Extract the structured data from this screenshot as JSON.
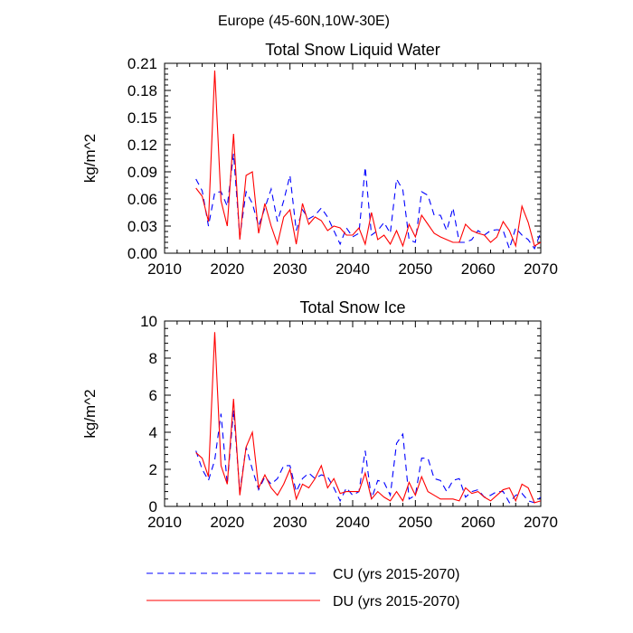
{
  "figure_title": "Europe (45-60N,10W-30E)",
  "legend": {
    "entries": [
      {
        "label": "CU (yrs 2015-2070)",
        "color": "#0000ff",
        "dash": "dashed"
      },
      {
        "label": "DU (yrs 2015-2070)",
        "color": "#ff0000",
        "dash": "solid"
      }
    ]
  },
  "chart_data": [
    {
      "type": "line",
      "title": "Total Snow Liquid Water",
      "xlabel": "",
      "ylabel": "kg/m^2",
      "xlim": [
        2010,
        2070
      ],
      "ylim": [
        0,
        0.21
      ],
      "xticks": [
        2010,
        2020,
        2030,
        2040,
        2050,
        2060,
        2070
      ],
      "yticks": [
        0,
        0.03,
        0.06,
        0.09,
        0.12,
        0.15,
        0.18,
        0.21
      ],
      "ytick_labels": [
        "0.00",
        "0.03",
        "0.06",
        "0.09",
        "0.12",
        "0.15",
        "0.18",
        "0.21"
      ],
      "x": [
        2015,
        2016,
        2017,
        2018,
        2019,
        2020,
        2021,
        2022,
        2023,
        2024,
        2025,
        2026,
        2027,
        2028,
        2029,
        2030,
        2031,
        2032,
        2033,
        2034,
        2035,
        2036,
        2037,
        2038,
        2039,
        2040,
        2041,
        2042,
        2043,
        2044,
        2045,
        2046,
        2047,
        2048,
        2049,
        2050,
        2051,
        2052,
        2053,
        2054,
        2055,
        2056,
        2057,
        2058,
        2059,
        2060,
        2061,
        2062,
        2063,
        2064,
        2065,
        2066,
        2067,
        2068,
        2069,
        2070
      ],
      "series": [
        {
          "name": "CU (yrs 2015-2070)",
          "color": "#0000ff",
          "dash": "dashed",
          "values": [
            0.082,
            0.069,
            0.03,
            0.067,
            0.068,
            0.052,
            0.11,
            0.018,
            0.068,
            0.055,
            0.03,
            0.05,
            0.071,
            0.035,
            0.058,
            0.086,
            0.025,
            0.048,
            0.038,
            0.042,
            0.05,
            0.04,
            0.025,
            0.01,
            0.028,
            0.018,
            0.022,
            0.095,
            0.02,
            0.025,
            0.034,
            0.022,
            0.082,
            0.07,
            0.015,
            0.012,
            0.068,
            0.064,
            0.042,
            0.042,
            0.025,
            0.05,
            0.012,
            0.012,
            0.015,
            0.025,
            0.02,
            0.025,
            0.026,
            0.025,
            0.005,
            0.028,
            0.02,
            0.015,
            0.005,
            0.023
          ]
        },
        {
          "name": "DU (yrs 2015-2070)",
          "color": "#ff0000",
          "dash": "solid",
          "values": [
            0.072,
            0.063,
            0.035,
            0.202,
            0.058,
            0.03,
            0.132,
            0.015,
            0.086,
            0.09,
            0.022,
            0.055,
            0.03,
            0.01,
            0.04,
            0.048,
            0.01,
            0.055,
            0.032,
            0.04,
            0.036,
            0.025,
            0.03,
            0.028,
            0.02,
            0.02,
            0.028,
            0.01,
            0.045,
            0.015,
            0.02,
            0.01,
            0.025,
            0.008,
            0.032,
            0.018,
            0.042,
            0.032,
            0.022,
            0.018,
            0.015,
            0.012,
            0.012,
            0.032,
            0.025,
            0.022,
            0.02,
            0.012,
            0.018,
            0.035,
            0.025,
            0.008,
            0.052,
            0.034,
            0.008,
            0.012
          ]
        }
      ]
    },
    {
      "type": "line",
      "title": "Total Snow Ice",
      "xlabel": "",
      "ylabel": "kg/m^2",
      "xlim": [
        2010,
        2070
      ],
      "ylim": [
        0,
        10
      ],
      "xticks": [
        2010,
        2020,
        2030,
        2040,
        2050,
        2060,
        2070
      ],
      "yticks": [
        0,
        2,
        4,
        6,
        8,
        10
      ],
      "ytick_labels": [
        "0",
        "2",
        "4",
        "6",
        "8",
        "10"
      ],
      "x": [
        2015,
        2016,
        2017,
        2018,
        2019,
        2020,
        2021,
        2022,
        2023,
        2024,
        2025,
        2026,
        2027,
        2028,
        2029,
        2030,
        2031,
        2032,
        2033,
        2034,
        2035,
        2036,
        2037,
        2038,
        2039,
        2040,
        2041,
        2042,
        2043,
        2044,
        2045,
        2046,
        2047,
        2048,
        2049,
        2050,
        2051,
        2052,
        2053,
        2054,
        2055,
        2056,
        2057,
        2058,
        2059,
        2060,
        2061,
        2062,
        2063,
        2064,
        2065,
        2066,
        2067,
        2068,
        2069,
        2070
      ],
      "series": [
        {
          "name": "CU (yrs 2015-2070)",
          "color": "#0000ff",
          "dash": "dashed",
          "values": [
            3.0,
            2.0,
            1.4,
            2.5,
            5.0,
            1.2,
            5.2,
            0.8,
            3.2,
            2.0,
            0.9,
            1.6,
            1.2,
            1.5,
            2.2,
            2.2,
            0.8,
            1.5,
            1.8,
            1.5,
            1.7,
            1.6,
            1.0,
            0.3,
            1.0,
            0.6,
            0.8,
            3.0,
            0.4,
            1.4,
            1.3,
            0.6,
            3.4,
            3.9,
            0.4,
            0.6,
            2.6,
            2.6,
            1.5,
            1.4,
            0.8,
            1.4,
            1.5,
            0.5,
            0.8,
            0.9,
            0.5,
            0.6,
            0.8,
            0.8,
            0.2,
            0.6,
            0.7,
            0.3,
            0.2,
            0.5
          ]
        },
        {
          "name": "DU (yrs 2015-2070)",
          "color": "#ff0000",
          "dash": "solid",
          "values": [
            2.9,
            2.6,
            1.6,
            9.4,
            2.2,
            1.2,
            5.8,
            0.6,
            3.2,
            4.0,
            1.0,
            1.7,
            1.0,
            0.6,
            1.2,
            2.0,
            0.4,
            1.2,
            1.0,
            1.5,
            2.2,
            1.0,
            1.5,
            0.7,
            0.8,
            0.8,
            0.8,
            1.8,
            0.4,
            0.8,
            0.5,
            0.3,
            0.8,
            0.3,
            1.3,
            0.6,
            1.6,
            0.8,
            0.6,
            0.4,
            0.4,
            0.4,
            0.3,
            1.0,
            0.7,
            0.8,
            0.5,
            0.3,
            0.6,
            0.9,
            1.0,
            0.3,
            1.2,
            1.0,
            0.2,
            0.3
          ]
        }
      ]
    }
  ]
}
